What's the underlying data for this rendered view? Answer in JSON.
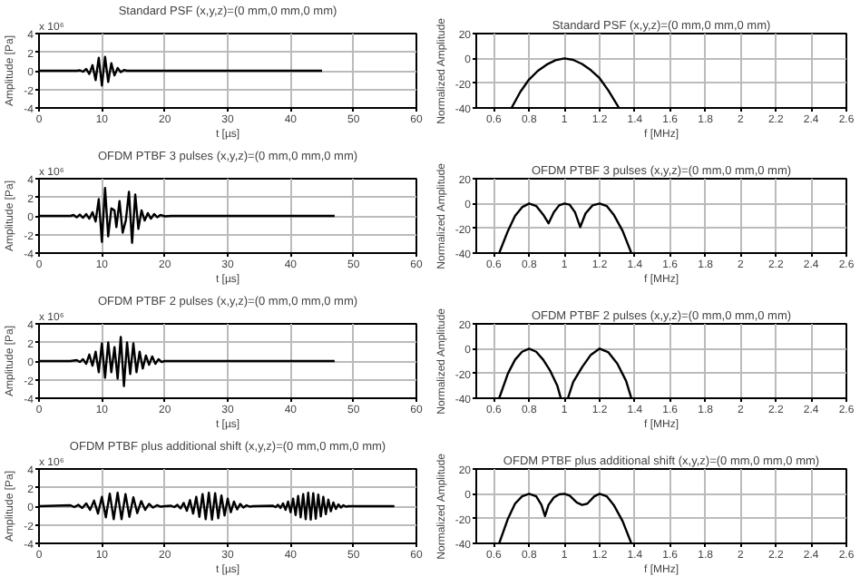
{
  "chart_data": [
    {
      "type": "line",
      "title": "Standard PSF (x,y,z)=(0 mm,0 mm,0 mm)",
      "xlabel": "t [µs]",
      "ylabel": "Amplitude [Pa]",
      "annotations": [
        "x 10⁶"
      ],
      "xlim": [
        0,
        60
      ],
      "ylim": [
        -4,
        4
      ],
      "xticks": [
        0,
        10,
        20,
        30,
        40,
        50,
        60
      ],
      "yticks": [
        -4,
        -2,
        0,
        2,
        4
      ],
      "grid": true,
      "series": [
        {
          "color": "#000000",
          "x": [
            0,
            6,
            6.5,
            7,
            7.5,
            8,
            8.5,
            9,
            9.5,
            10,
            10.5,
            11,
            11.5,
            12,
            12.5,
            13,
            13.5,
            14,
            45
          ],
          "values": [
            0,
            0,
            0.05,
            -0.1,
            0.2,
            -0.35,
            0.6,
            -1.0,
            1.4,
            -1.6,
            1.5,
            -1.2,
            0.8,
            -0.5,
            0.3,
            -0.15,
            0.08,
            0,
            0
          ]
        }
      ]
    },
    {
      "type": "line",
      "title": "Standard PSF (x,y,z)=(0 mm,0 mm,0 mm)",
      "xlabel": "f [MHz]",
      "ylabel": "Normalized Amplitude",
      "xlim": [
        0.5,
        2.6
      ],
      "ylim": [
        -40,
        20
      ],
      "xticks": [
        0.6,
        0.8,
        1,
        1.2,
        1.4,
        1.6,
        1.8,
        2,
        2.2,
        2.4,
        2.6
      ],
      "yticks": [
        -40,
        -20,
        0,
        20
      ],
      "grid": true,
      "series": [
        {
          "color": "#000000",
          "x": [
            0.7,
            0.75,
            0.8,
            0.85,
            0.9,
            0.95,
            1.0,
            1.05,
            1.1,
            1.15,
            1.2,
            1.25,
            1.31
          ],
          "values": [
            -40,
            -27,
            -17,
            -10,
            -5,
            -1.5,
            0,
            -1.2,
            -4.5,
            -9.5,
            -16,
            -26,
            -40
          ]
        }
      ]
    },
    {
      "type": "line",
      "title": "OFDM PTBF 3 pulses (x,y,z)=(0 mm,0 mm,0 mm)",
      "xlabel": "t [µs]",
      "ylabel": "Amplitude [Pa]",
      "annotations": [
        "x 10⁶"
      ],
      "xlim": [
        0,
        60
      ],
      "ylim": [
        -4,
        4
      ],
      "xticks": [
        0,
        10,
        20,
        30,
        40,
        50,
        60
      ],
      "yticks": [
        -4,
        -2,
        0,
        2,
        4
      ],
      "grid": true,
      "series": [
        {
          "color": "#000000",
          "x": [
            0,
            5,
            5.5,
            6,
            6.5,
            7,
            7.5,
            8,
            8.5,
            9,
            9.5,
            10,
            10.5,
            11,
            11.5,
            12,
            12.3,
            12.8,
            13.3,
            13.8,
            14.3,
            14.8,
            15.3,
            15.8,
            16.3,
            16.8,
            17.3,
            17.8,
            18.3,
            18.8,
            19.3,
            20,
            21,
            47
          ],
          "values": [
            0,
            0,
            0.1,
            -0.15,
            0.15,
            -0.2,
            0.2,
            -0.3,
            0.4,
            -0.6,
            1.8,
            -2.8,
            3.0,
            -2.2,
            0.8,
            0.6,
            -1.2,
            1.6,
            -1.8,
            -0.5,
            2.6,
            -2.9,
            2.3,
            -1.4,
            0.6,
            -0.5,
            0.3,
            -0.3,
            0.2,
            -0.15,
            0.1,
            -0.05,
            0,
            0
          ]
        }
      ]
    },
    {
      "type": "line",
      "title": "OFDM PTBF 3 pulses (x,y,z)=(0 mm,0 mm,0 mm)",
      "xlabel": "f [MHz]",
      "ylabel": "Normalized Amplitude",
      "xlim": [
        0.5,
        2.6
      ],
      "ylim": [
        -40,
        20
      ],
      "xticks": [
        0.6,
        0.8,
        1,
        1.2,
        1.4,
        1.6,
        1.8,
        2,
        2.2,
        2.4,
        2.6
      ],
      "yticks": [
        -40,
        -20,
        0,
        20
      ],
      "grid": true,
      "series": [
        {
          "color": "#000000",
          "x": [
            0.63,
            0.68,
            0.72,
            0.76,
            0.8,
            0.84,
            0.88,
            0.91,
            0.94,
            0.97,
            1.0,
            1.03,
            1.06,
            1.09,
            1.12,
            1.16,
            1.2,
            1.24,
            1.28,
            1.33,
            1.38
          ],
          "values": [
            -40,
            -22,
            -10,
            -3,
            0,
            -2,
            -9,
            -16,
            -7,
            -1.5,
            0,
            -1,
            -7,
            -19,
            -8,
            -1.5,
            0,
            -2,
            -9,
            -22,
            -40
          ]
        }
      ]
    },
    {
      "type": "line",
      "title": "OFDM PTBF 2 pulses (x,y,z)=(0 mm,0 mm,0 mm)",
      "xlabel": "t [µs]",
      "ylabel": "Amplitude [Pa]",
      "annotations": [
        "x 10⁶"
      ],
      "xlim": [
        0,
        60
      ],
      "ylim": [
        -4,
        4
      ],
      "xticks": [
        0,
        10,
        20,
        30,
        40,
        50,
        60
      ],
      "yticks": [
        -4,
        -2,
        0,
        2,
        4
      ],
      "grid": true,
      "series": [
        {
          "color": "#000000",
          "x": [
            0,
            5,
            6,
            6.5,
            7,
            7.5,
            8,
            8.5,
            9,
            9.5,
            10,
            10.5,
            11,
            11.5,
            12,
            12.5,
            13,
            13.5,
            14,
            14.5,
            15,
            15.5,
            16,
            16.5,
            17,
            17.5,
            18,
            18.5,
            19,
            19.5,
            20,
            47
          ],
          "values": [
            0,
            0,
            0.1,
            -0.1,
            0.2,
            -0.3,
            0.7,
            -0.5,
            1.0,
            -1.2,
            1.9,
            -1.8,
            2.0,
            -1.2,
            1.5,
            -1.9,
            2.6,
            -2.7,
            2.0,
            -1.4,
            1.9,
            -1.2,
            1.0,
            -0.8,
            0.6,
            -0.4,
            0.5,
            -0.3,
            0.2,
            -0.1,
            0,
            0
          ]
        }
      ]
    },
    {
      "type": "line",
      "title": "OFDM PTBF 2 pulses (x,y,z)=(0 mm,0 mm,0 mm)",
      "xlabel": "f [MHz]",
      "ylabel": "Normalized Amplitude",
      "xlim": [
        0.5,
        2.6
      ],
      "ylim": [
        -40,
        20
      ],
      "xticks": [
        0.6,
        0.8,
        1,
        1.2,
        1.4,
        1.6,
        1.8,
        2,
        2.2,
        2.4,
        2.6
      ],
      "yticks": [
        -40,
        -20,
        0,
        20
      ],
      "grid": true,
      "series": [
        {
          "color": "#000000",
          "x": [
            0.63,
            0.68,
            0.72,
            0.76,
            0.8,
            0.84,
            0.88,
            0.92,
            0.96,
            0.98,
            null,
            1.02,
            1.05,
            1.1,
            1.15,
            1.2,
            1.25,
            1.3,
            1.35,
            1.38
          ],
          "values": [
            -40,
            -20,
            -9,
            -2.5,
            0,
            -2.5,
            -9,
            -18,
            -30,
            -40,
            null,
            -40,
            -27,
            -15,
            -5,
            0,
            -3,
            -12,
            -26,
            -40
          ]
        }
      ]
    },
    {
      "type": "line",
      "title": "OFDM PTBF plus additional shift (x,y,z)=(0 mm,0 mm,0 mm)",
      "xlabel": "t [µs]",
      "ylabel": "Amplitude [Pa]",
      "annotations": [
        "x 10⁶"
      ],
      "xlim": [
        0,
        60
      ],
      "ylim": [
        -4,
        4
      ],
      "xticks": [
        0,
        10,
        20,
        30,
        40,
        50,
        60
      ],
      "yticks": [
        -4,
        -2,
        0,
        2,
        4
      ],
      "grid": true,
      "series": [
        {
          "color": "#000000",
          "x": [
            0,
            5.0,
            5.625,
            6.25,
            6.875,
            7.5,
            8.125,
            8.75,
            9.375,
            10.0,
            10.625,
            11.25,
            11.875,
            12.5,
            13.125,
            13.75,
            14.375,
            15.0,
            15.625,
            16.25,
            16.875,
            17.5,
            18.125,
            18.75,
            19.375,
            20,
            21,
            21.5,
            22,
            22.5,
            23,
            23.5,
            24,
            24.5,
            25,
            25.5,
            26,
            26.5,
            27,
            27.5,
            28,
            28.5,
            29,
            29.5,
            30,
            30.5,
            31,
            31.5,
            32,
            32.5,
            33,
            33.5,
            34,
            37.2,
            37.6,
            38,
            38.4,
            38.8,
            39.2,
            39.6,
            40,
            40.4,
            40.8,
            41.2,
            41.6,
            42,
            42.4,
            42.8,
            43.2,
            43.6,
            44,
            44.4,
            44.8,
            45.2,
            45.6,
            46,
            46.4,
            46.8,
            47.2,
            47.6,
            48,
            48.4,
            48.8,
            49.2,
            56.5
          ],
          "values": [
            0,
            0.1,
            -0.1,
            0.15,
            -0.2,
            0.3,
            -0.4,
            0.6,
            -0.8,
            1.0,
            -1.2,
            1.35,
            -1.4,
            1.45,
            -1.4,
            1.3,
            -1.15,
            0.95,
            -0.75,
            0.55,
            -0.4,
            0.25,
            -0.15,
            0.1,
            -0.05,
            0,
            0.05,
            -0.1,
            0.15,
            -0.25,
            0.35,
            -0.5,
            0.65,
            -0.8,
            1.0,
            -1.15,
            1.3,
            -1.4,
            1.45,
            -1.45,
            1.4,
            -1.3,
            1.15,
            -1.0,
            0.8,
            -0.65,
            0.5,
            -0.35,
            0.25,
            -0.15,
            0.1,
            -0.05,
            0,
            0.05,
            -0.1,
            0.15,
            -0.2,
            0.3,
            -0.4,
            0.5,
            -0.65,
            0.8,
            -0.95,
            1.1,
            -1.2,
            1.3,
            -1.4,
            1.45,
            -1.45,
            1.4,
            -1.35,
            1.25,
            -1.1,
            1.0,
            -0.85,
            0.7,
            -0.55,
            0.4,
            -0.3,
            0.2,
            -0.15,
            0.1,
            -0.05,
            0,
            0
          ]
        }
      ]
    },
    {
      "type": "line",
      "title": "OFDM PTBF plus additional shift (x,y,z)=(0 mm,0 mm,0 mm)",
      "xlabel": "f [MHz]",
      "ylabel": "Normalized Amplitude",
      "xlim": [
        0.5,
        2.6
      ],
      "ylim": [
        -40,
        20
      ],
      "xticks": [
        0.6,
        0.8,
        1,
        1.2,
        1.4,
        1.6,
        1.8,
        2,
        2.2,
        2.4,
        2.6
      ],
      "yticks": [
        -40,
        -20,
        0,
        20
      ],
      "grid": true,
      "series": [
        {
          "color": "#000000",
          "x": [
            0.63,
            0.68,
            0.72,
            0.76,
            0.8,
            0.84,
            0.87,
            0.89,
            0.91,
            0.94,
            0.97,
            1.0,
            1.03,
            1.07,
            1.1,
            1.13,
            1.17,
            1.2,
            1.24,
            1.28,
            1.33,
            1.38
          ],
          "values": [
            -40,
            -20,
            -8,
            -2,
            0,
            -2,
            -9,
            -18,
            -9,
            -3,
            -0.5,
            0,
            -1.5,
            -7,
            -9,
            -8,
            -2,
            0,
            -2,
            -9,
            -22,
            -40
          ]
        }
      ]
    }
  ]
}
